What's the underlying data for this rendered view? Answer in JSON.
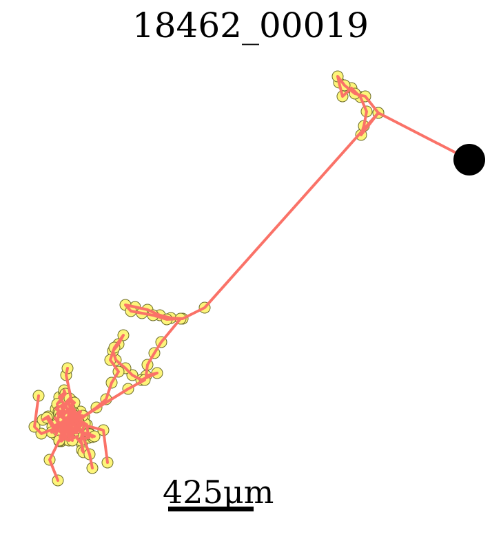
{
  "title": "18462_00019",
  "scale_bar": {
    "label": "425μm"
  },
  "colors": {
    "track": "#fa7268",
    "point_fill": "#fdf57a",
    "point_stroke": "#6b6b2a",
    "end_marker": "#000000"
  }
}
